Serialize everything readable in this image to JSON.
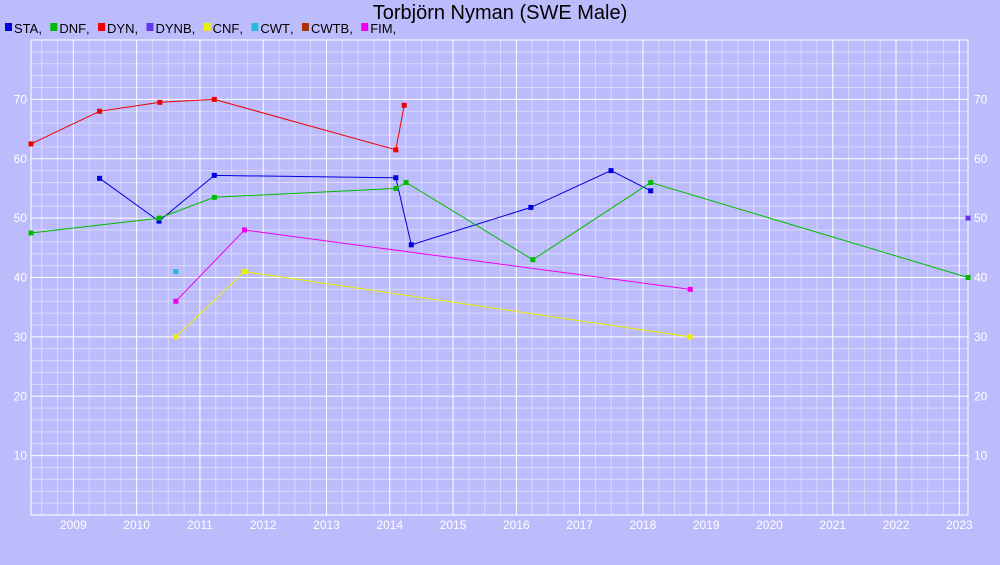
{
  "chart_data": {
    "type": "line",
    "title": "Torbjörn Nyman (SWE Male)",
    "xlabel": "",
    "ylabel": "",
    "xlim": [
      "2008-05-01",
      "2023-02-20"
    ],
    "ylim": [
      0,
      80
    ],
    "x_ticks": [
      "2009",
      "2010",
      "2011",
      "2012",
      "2013",
      "2014",
      "2015",
      "2016",
      "2017",
      "2018",
      "2019",
      "2020",
      "2021",
      "2022",
      "2023"
    ],
    "y_ticks": [
      10,
      20,
      30,
      40,
      50,
      60,
      70
    ],
    "grid": true,
    "legend_position": "top-left",
    "colors": {
      "background": "#bcbcfc",
      "grid_major": "#ffffff",
      "grid_minor": "#d8d8fc"
    },
    "series": [
      {
        "name": "STA",
        "color": "#0000dd",
        "points": [
          {
            "x": "2009-06-01",
            "y": 56.7
          },
          {
            "x": "2010-05-10",
            "y": 49.5
          },
          {
            "x": "2011-03-25",
            "y": 57.2
          },
          {
            "x": "2014-02-05",
            "y": 56.8
          },
          {
            "x": "2014-05-05",
            "y": 45.5
          },
          {
            "x": "2016-03-25",
            "y": 51.8
          },
          {
            "x": "2017-07-01",
            "y": 58.0
          },
          {
            "x": "2018-02-15",
            "y": 54.6
          }
        ]
      },
      {
        "name": "DNF",
        "color": "#00bb00",
        "points": [
          {
            "x": "2008-05-01",
            "y": 47.5
          },
          {
            "x": "2010-05-10",
            "y": 50.0
          },
          {
            "x": "2011-03-25",
            "y": 53.5
          },
          {
            "x": "2014-02-05",
            "y": 55.0
          },
          {
            "x": "2014-04-05",
            "y": 56.0
          },
          {
            "x": "2016-04-05",
            "y": 43.0
          },
          {
            "x": "2018-02-15",
            "y": 56.0
          },
          {
            "x": "2023-02-20",
            "y": 40.0
          }
        ]
      },
      {
        "name": "DYN",
        "color": "#ee0000",
        "segments": [
          [
            {
              "x": "2008-05-01",
              "y": 62.5
            },
            {
              "x": "2009-06-01",
              "y": 68.0
            },
            {
              "x": "2010-05-15",
              "y": 69.5
            },
            {
              "x": "2011-03-25",
              "y": 70.0
            },
            {
              "x": "2014-02-05",
              "y": 61.5
            },
            {
              "x": "2014-03-25",
              "y": 69.0
            }
          ]
        ]
      },
      {
        "name": "DYNB",
        "color": "#6633ee",
        "points": [
          {
            "x": "2023-02-20",
            "y": 50.0
          }
        ]
      },
      {
        "name": "CNF",
        "color": "#eeee00",
        "points": [
          {
            "x": "2010-08-15",
            "y": 30.0
          },
          {
            "x": "2011-09-15",
            "y": 41.0
          },
          {
            "x": "2018-10-01",
            "y": 30.0
          }
        ]
      },
      {
        "name": "CWT",
        "color": "#22bbdd",
        "points": [
          {
            "x": "2010-08-15",
            "y": 41.0
          }
        ]
      },
      {
        "name": "CWTB",
        "color": "#aa3300",
        "points": []
      },
      {
        "name": "FIM",
        "color": "#ee00ee",
        "points": [
          {
            "x": "2010-08-15",
            "y": 36.0
          },
          {
            "x": "2011-09-15",
            "y": 48.0
          },
          {
            "x": "2018-10-01",
            "y": 38.0
          }
        ]
      }
    ]
  }
}
